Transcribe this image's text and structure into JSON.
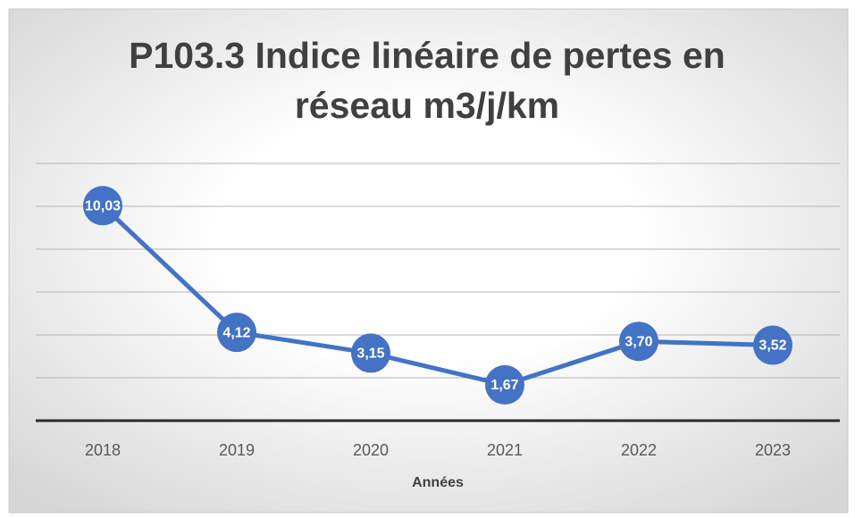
{
  "chart_data": {
    "type": "line",
    "title": "P103.3 Indice linéaire de pertes en réseau m3/j/km",
    "x_label": "Années",
    "categories": [
      "2018",
      "2019",
      "2020",
      "2021",
      "2022",
      "2023"
    ],
    "series": [
      {
        "name": "P103.3",
        "color": "#4472c4",
        "values": [
          10.03,
          4.12,
          3.15,
          1.67,
          3.7,
          3.52
        ],
        "value_labels": [
          "10,03",
          "4,12",
          "3,15",
          "1,67",
          "3,70",
          "3,52"
        ]
      }
    ],
    "ylim": [
      0,
      12
    ],
    "yticks": [
      0,
      2,
      4,
      6,
      8,
      10,
      12
    ],
    "grid": true
  }
}
